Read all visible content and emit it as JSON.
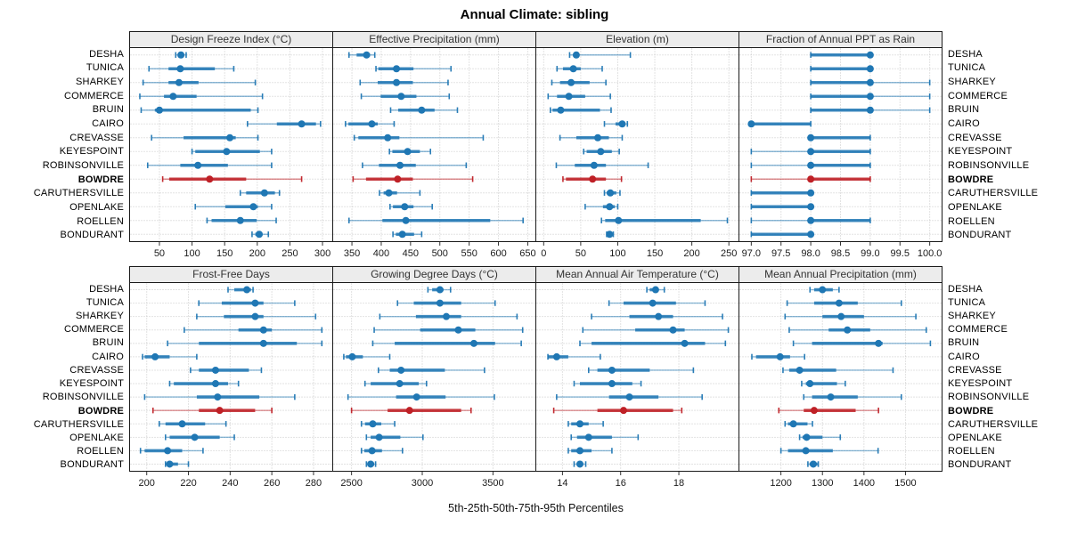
{
  "title": "Annual Climate: sibling",
  "caption": "5th-25th-50th-75th-95th Percentiles",
  "highlight_location": "BOWDRE",
  "percentile_labels": [
    "5th",
    "25th",
    "50th",
    "75th",
    "95th"
  ],
  "locations": [
    "DESHA",
    "TUNICA",
    "SHARKEY",
    "COMMERCE",
    "BRUIN",
    "CAIRO",
    "CREVASSE",
    "KEYESPOINT",
    "ROBINSONVILLE",
    "BOWDRE",
    "CARUTHERSVILLE",
    "OPENLAKE",
    "ROELLEN",
    "BONDURANT"
  ],
  "colors": {
    "series": "#1f77b4",
    "highlight": "#bf2026",
    "grid": "#c6c6c6",
    "strip_bg": "#ececec",
    "panel_border": "#1a1a1a",
    "strip_text": "#333333"
  },
  "chart_data": {
    "type": "scatter",
    "subtype": "horizontal-percentile-intervals (5-25-50-75-95)",
    "categories_note": "each panel plots the 14 locations top-to-bottom in the order of 'locations'; values are [p5,p25,p50,p75,p95]",
    "legend_position": "none",
    "grid": "dotted",
    "panels": [
      {
        "key": "design-freeze-index",
        "grid_row": 0,
        "title": "Design Freeze Index (°C)",
        "xlim": [
          5,
          315
        ],
        "ticks": [
          50,
          100,
          150,
          200,
          250,
          300
        ],
        "tick_labels": [
          "50",
          "100",
          "150",
          "200",
          "250",
          "300"
        ],
        "percentiles": [
          [
            75,
            78,
            83,
            87,
            91
          ],
          [
            34,
            64,
            82,
            135,
            164
          ],
          [
            25,
            64,
            80,
            110,
            197
          ],
          [
            20,
            57,
            71,
            107,
            208
          ],
          [
            22,
            43,
            50,
            190,
            201
          ],
          [
            185,
            230,
            268,
            290,
            297
          ],
          [
            38,
            87,
            158,
            167,
            201
          ],
          [
            100,
            105,
            153,
            204,
            222
          ],
          [
            32,
            82,
            109,
            155,
            222
          ],
          [
            55,
            65,
            127,
            183,
            268
          ],
          [
            174,
            183,
            211,
            227,
            234
          ],
          [
            105,
            151,
            194,
            201,
            222
          ],
          [
            123,
            130,
            174,
            199,
            229
          ],
          [
            192,
            197,
            203,
            208,
            217
          ]
        ]
      },
      {
        "key": "effective-precipitation",
        "grid_row": 0,
        "title": "Effective Precipitation (mm)",
        "xlim": [
          318,
          663
        ],
        "ticks": [
          350,
          400,
          450,
          500,
          550,
          600,
          650
        ],
        "tick_labels": [
          "350",
          "400",
          "450",
          "500",
          "550",
          "600",
          "650"
        ],
        "percentiles": [
          [
            345,
            358,
            375,
            381,
            389
          ],
          [
            391,
            395,
            426,
            455,
            519
          ],
          [
            364,
            394,
            426,
            454,
            514
          ],
          [
            366,
            399,
            434,
            460,
            516
          ],
          [
            416,
            429,
            469,
            491,
            530
          ],
          [
            339,
            344,
            384,
            394,
            422
          ],
          [
            354,
            361,
            411,
            431,
            574
          ],
          [
            414,
            419,
            445,
            466,
            484
          ],
          [
            368,
            396,
            432,
            459,
            545
          ],
          [
            352,
            374,
            428,
            454,
            556
          ],
          [
            397,
            404,
            413,
            427,
            466
          ],
          [
            415,
            420,
            440,
            455,
            487
          ],
          [
            345,
            402,
            442,
            586,
            642
          ],
          [
            420,
            425,
            436,
            456,
            469
          ]
        ]
      },
      {
        "key": "elevation",
        "grid_row": 0,
        "title": "Elevation (m)",
        "xlim": [
          -10,
          263
        ],
        "ticks": [
          0,
          50,
          100,
          150,
          200,
          250
        ],
        "tick_labels": [
          "0",
          "50",
          "100",
          "150",
          "200",
          "250"
        ],
        "percentiles": [
          [
            35,
            40,
            44,
            48,
            117
          ],
          [
            18,
            26,
            40,
            50,
            79
          ],
          [
            11,
            22,
            37,
            62,
            84
          ],
          [
            6,
            18,
            34,
            56,
            90
          ],
          [
            9,
            12,
            23,
            76,
            91
          ],
          [
            82,
            97,
            106,
            110,
            113
          ],
          [
            22,
            44,
            73,
            88,
            106
          ],
          [
            54,
            58,
            77,
            92,
            102
          ],
          [
            17,
            42,
            68,
            84,
            141
          ],
          [
            26,
            30,
            66,
            84,
            105
          ],
          [
            82,
            85,
            90,
            98,
            103
          ],
          [
            56,
            80,
            89,
            96,
            100
          ],
          [
            78,
            83,
            101,
            212,
            248
          ],
          [
            85,
            86,
            89,
            92,
            94
          ]
        ]
      },
      {
        "key": "fraction-annual-ppt-rain",
        "grid_row": 0,
        "title": "Fraction of Annual PPT as Rain",
        "xlim": [
          96.8,
          100.2
        ],
        "ticks": [
          97.0,
          97.5,
          98.0,
          98.5,
          99.0,
          99.5,
          100.0
        ],
        "tick_labels": [
          "97.0",
          "97.5",
          "98.0",
          "98.5",
          "99.0",
          "99.5",
          "100.0"
        ],
        "percentiles": [
          [
            98,
            98,
            99,
            99,
            99
          ],
          [
            98,
            98,
            99,
            99,
            99
          ],
          [
            98,
            98,
            99,
            99,
            100
          ],
          [
            98,
            98,
            99,
            99,
            100
          ],
          [
            98,
            98,
            99,
            99,
            100
          ],
          [
            97,
            97,
            97,
            98,
            98
          ],
          [
            98,
            98,
            98,
            99,
            99
          ],
          [
            97,
            98,
            98,
            99,
            99
          ],
          [
            97,
            98,
            98,
            99,
            99
          ],
          [
            97,
            98,
            98,
            99,
            99
          ],
          [
            97,
            97,
            98,
            98,
            98
          ],
          [
            97,
            97,
            98,
            98,
            98
          ],
          [
            97,
            98,
            98,
            99,
            99
          ],
          [
            97,
            97,
            98,
            98,
            98
          ]
        ]
      },
      {
        "key": "frost-free-days",
        "grid_row": 1,
        "title": "Frost-Free Days",
        "xlim": [
          192,
          289
        ],
        "ticks": [
          200,
          220,
          240,
          260,
          280
        ],
        "tick_labels": [
          "200",
          "220",
          "240",
          "260",
          "280"
        ],
        "percentiles": [
          [
            239,
            242,
            248,
            250,
            251
          ],
          [
            225,
            236,
            252,
            256,
            271
          ],
          [
            224,
            237,
            252,
            256,
            281
          ],
          [
            218,
            244,
            256,
            260,
            284
          ],
          [
            210,
            225,
            256,
            272,
            284
          ],
          [
            198,
            199,
            204,
            211,
            224
          ],
          [
            221,
            225,
            233,
            249,
            255
          ],
          [
            211,
            213,
            233,
            239,
            244
          ],
          [
            199,
            224,
            234,
            254,
            271
          ],
          [
            203,
            225,
            235,
            252,
            260
          ],
          [
            206,
            209,
            217,
            228,
            238
          ],
          [
            209,
            211,
            223,
            235,
            242
          ],
          [
            197,
            199,
            210,
            217,
            227
          ],
          [
            209,
            210,
            211,
            215,
            220
          ]
        ]
      },
      {
        "key": "growing-degree-days",
        "grid_row": 1,
        "title": "Growing Degree Days (°C)",
        "xlim": [
          2370,
          3800
        ],
        "ticks": [
          2500,
          3000,
          3500
        ],
        "tick_labels": [
          "2500",
          "3000",
          "3500"
        ],
        "percentiles": [
          [
            3040,
            3070,
            3125,
            3150,
            3200
          ],
          [
            2825,
            2940,
            3125,
            3275,
            3515
          ],
          [
            2700,
            2955,
            3170,
            3275,
            3670
          ],
          [
            2660,
            2985,
            3255,
            3375,
            3710
          ],
          [
            2650,
            2805,
            3365,
            3515,
            3700
          ],
          [
            2445,
            2460,
            2505,
            2580,
            2770
          ],
          [
            2690,
            2770,
            2850,
            3160,
            3440
          ],
          [
            2595,
            2635,
            2840,
            2975,
            3030
          ],
          [
            2475,
            2815,
            2960,
            3165,
            3510
          ],
          [
            2500,
            2755,
            2910,
            3275,
            3345
          ],
          [
            2570,
            2595,
            2650,
            2710,
            2805
          ],
          [
            2605,
            2635,
            2695,
            2845,
            3005
          ],
          [
            2570,
            2590,
            2645,
            2715,
            2860
          ],
          [
            2605,
            2615,
            2635,
            2660,
            2670
          ]
        ]
      },
      {
        "key": "mean-annual-air-temperature",
        "grid_row": 1,
        "title": "Mean Annual Air Temperature (°C)",
        "xlim": [
          13.1,
          20.05
        ],
        "ticks": [
          14,
          16,
          18
        ],
        "tick_labels": [
          "14",
          "16",
          "18"
        ],
        "percentiles": [
          [
            16.9,
            17.0,
            17.2,
            17.3,
            17.5
          ],
          [
            15.6,
            16.1,
            17.1,
            17.9,
            18.9
          ],
          [
            15.0,
            16.3,
            17.3,
            17.8,
            19.5
          ],
          [
            14.7,
            16.5,
            17.8,
            18.2,
            19.7
          ],
          [
            14.6,
            15.0,
            18.2,
            18.9,
            19.6
          ],
          [
            13.5,
            13.5,
            13.8,
            14.2,
            15.3
          ],
          [
            14.9,
            15.2,
            15.7,
            17.0,
            18.5
          ],
          [
            14.4,
            14.6,
            15.7,
            16.4,
            16.7
          ],
          [
            13.8,
            15.6,
            16.3,
            17.3,
            18.8
          ],
          [
            13.7,
            15.2,
            16.1,
            17.8,
            18.1
          ],
          [
            14.2,
            14.3,
            14.6,
            14.9,
            15.4
          ],
          [
            14.3,
            14.5,
            14.9,
            15.7,
            16.6
          ],
          [
            14.2,
            14.3,
            14.6,
            15.0,
            15.7
          ],
          [
            14.4,
            14.5,
            14.6,
            14.7,
            14.8
          ]
        ]
      },
      {
        "key": "mean-annual-precipitation",
        "grid_row": 1,
        "title": "Mean Annual Precipitation (mm)",
        "xlim": [
          1100,
          1587
        ],
        "ticks": [
          1200,
          1300,
          1400,
          1500
        ],
        "tick_labels": [
          "1200",
          "1300",
          "1400",
          "1500"
        ],
        "percentiles": [
          [
            1270,
            1280,
            1300,
            1325,
            1340
          ],
          [
            1215,
            1280,
            1340,
            1385,
            1490
          ],
          [
            1210,
            1300,
            1345,
            1400,
            1525
          ],
          [
            1220,
            1315,
            1360,
            1415,
            1550
          ],
          [
            1230,
            1275,
            1435,
            1445,
            1560
          ],
          [
            1130,
            1140,
            1198,
            1222,
            1257
          ],
          [
            1205,
            1220,
            1245,
            1333,
            1470
          ],
          [
            1250,
            1260,
            1270,
            1335,
            1355
          ],
          [
            1255,
            1275,
            1320,
            1385,
            1490
          ],
          [
            1195,
            1255,
            1280,
            1380,
            1435
          ],
          [
            1210,
            1217,
            1230,
            1264,
            1276
          ],
          [
            1245,
            1252,
            1262,
            1300,
            1343
          ],
          [
            1200,
            1217,
            1260,
            1325,
            1434
          ],
          [
            1265,
            1269,
            1278,
            1288,
            1290
          ]
        ]
      }
    ]
  }
}
